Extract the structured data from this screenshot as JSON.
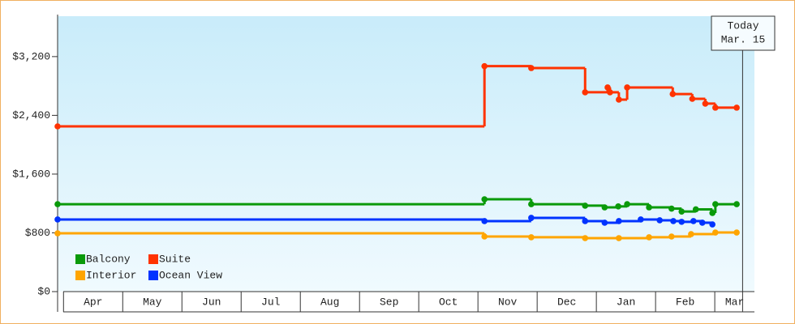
{
  "chart_data": {
    "type": "line",
    "step": "post",
    "xlim": [
      -0.1,
      11.67
    ],
    "xticks": [
      {
        "value": 0.5,
        "label": "Apr"
      },
      {
        "value": 1.5,
        "label": "May"
      },
      {
        "value": 2.5,
        "label": "Jun"
      },
      {
        "value": 3.5,
        "label": "Jul"
      },
      {
        "value": 4.5,
        "label": "Aug"
      },
      {
        "value": 5.5,
        "label": "Sep"
      },
      {
        "value": 6.5,
        "label": "Oct"
      },
      {
        "value": 7.5,
        "label": "Nov"
      },
      {
        "value": 8.5,
        "label": "Dec"
      },
      {
        "value": 9.5,
        "label": "Jan"
      },
      {
        "value": 10.5,
        "label": "Feb"
      },
      {
        "value": 11.33,
        "label": "Mar"
      }
    ],
    "ylim": [
      0,
      3750
    ],
    "yticks": [
      {
        "value": 0,
        "label": "$0"
      },
      {
        "value": 800,
        "label": "$800"
      },
      {
        "value": 1600,
        "label": "$1,600"
      },
      {
        "value": 2400,
        "label": "$2,400"
      },
      {
        "value": 3200,
        "label": "$3,200"
      }
    ],
    "legend": "lower left",
    "annotation": {
      "lines": [
        "Today",
        "Mar. 15"
      ],
      "x": 11.47
    },
    "series": [
      {
        "name": "Balcony",
        "color": "#0a9a0a",
        "x": [
          -0.1,
          7.11,
          7.9,
          8.81,
          9.14,
          9.37,
          9.52,
          9.89,
          10.27,
          10.44,
          10.68,
          10.96,
          11.01,
          11.37
        ],
        "values": [
          1190,
          1257,
          1190,
          1170,
          1147,
          1160,
          1190,
          1147,
          1130,
          1090,
          1120,
          1070,
          1190,
          1190
        ]
      },
      {
        "name": "Suite",
        "color": "#ff3300",
        "x": [
          -0.1,
          7.11,
          7.9,
          8.81,
          9.19,
          9.23,
          9.38,
          9.52,
          10.29,
          10.62,
          10.84,
          11.01,
          11.37
        ],
        "values": [
          2250,
          3070,
          3044,
          2714,
          2780,
          2714,
          2614,
          2780,
          2690,
          2625,
          2560,
          2505,
          2505
        ]
      },
      {
        "name": "Interior",
        "color": "#ffa500",
        "x": [
          -0.1,
          7.11,
          7.9,
          8.81,
          9.38,
          9.89,
          10.27,
          10.6,
          11.01,
          11.37
        ],
        "values": [
          794,
          750,
          740,
          728,
          728,
          740,
          750,
          783,
          805,
          805
        ]
      },
      {
        "name": "Ocean View",
        "color": "#0033ff",
        "x": [
          -0.1,
          7.11,
          7.9,
          8.81,
          9.14,
          9.38,
          9.75,
          10.07,
          10.3,
          10.44,
          10.64,
          10.79,
          10.96
        ],
        "values": [
          982,
          960,
          1004,
          960,
          938,
          960,
          982,
          971,
          960,
          950,
          960,
          938,
          915
        ]
      }
    ]
  }
}
